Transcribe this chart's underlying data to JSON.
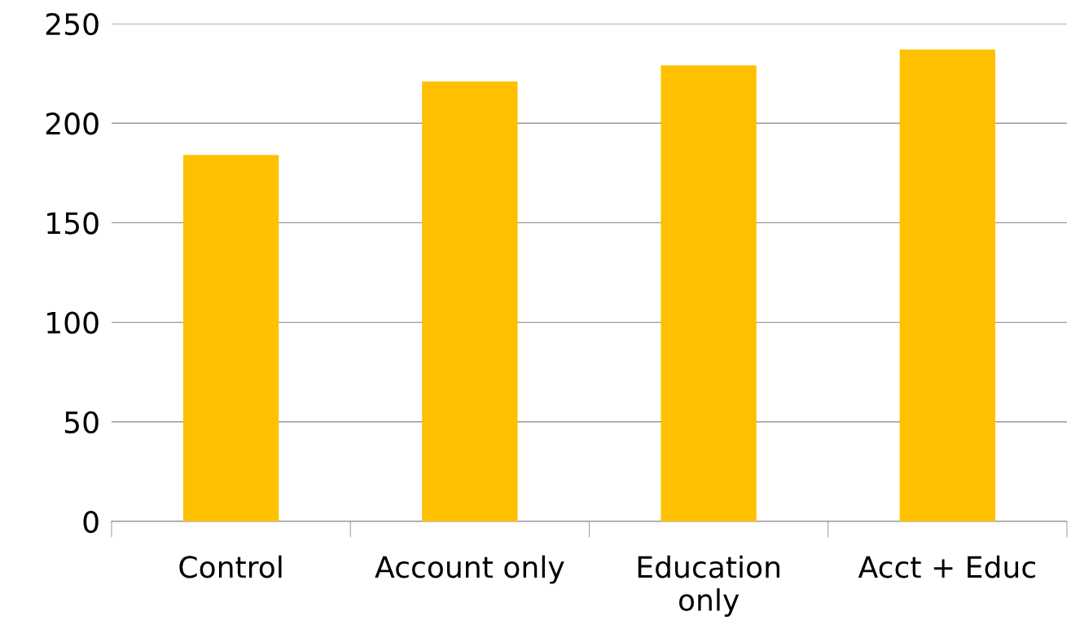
{
  "chart_data": {
    "type": "bar",
    "categories": [
      "Control",
      "Account only",
      "Education\nonly",
      "Acct + Educ"
    ],
    "values": [
      184,
      221,
      229,
      237
    ],
    "color": "#ffc000",
    "ylim": [
      0,
      250
    ],
    "yticks": [
      0,
      50,
      100,
      150,
      200,
      250
    ],
    "grid": "y"
  }
}
